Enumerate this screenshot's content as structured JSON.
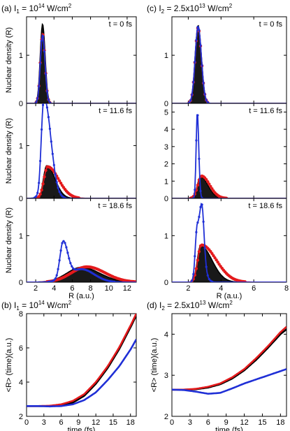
{
  "colors": {
    "black": "#000000",
    "red": "#e41a1c",
    "blue": "#1f2fd6"
  },
  "chart_data": [
    {
      "id": "a0",
      "type": "line",
      "title_prefix": "(a) I",
      "title_sub": "1",
      "title_eq": " = 10",
      "title_sup": "14",
      "title_unit": " W/cm",
      "title_unit_sup": "2",
      "time_label": "t = 0 fs",
      "ylabel": "Nuclear density (R)",
      "xlabel": "",
      "xlim": [
        1,
        13
      ],
      "ylim": [
        0,
        1.8
      ],
      "xticks": [
        "2",
        "4",
        "6",
        "8",
        "10",
        "12"
      ],
      "yticks": [
        "0",
        "1"
      ],
      "series": [
        {
          "color": "black",
          "peak": 2.75,
          "sigmaL": 0.25,
          "sigmaR": 0.28,
          "height": 1.65
        },
        {
          "color": "red",
          "peak": 2.75,
          "sigmaL": 0.24,
          "sigmaR": 0.27,
          "height": 1.45
        },
        {
          "color": "blue",
          "peak": 2.75,
          "sigmaL": 0.24,
          "sigmaR": 0.27,
          "height": 1.42
        }
      ]
    },
    {
      "id": "a1",
      "type": "line",
      "time_label": "t = 11.6 fs",
      "ylabel": "Nuclear density (R)",
      "xlabel": "",
      "xlim": [
        1,
        13
      ],
      "ylim": [
        0,
        1.8
      ],
      "xticks": [
        "2",
        "4",
        "6",
        "8",
        "10",
        "12"
      ],
      "yticks": [
        "0",
        "1"
      ],
      "series": [
        {
          "color": "black",
          "peak": 3.2,
          "sigmaL": 0.35,
          "sigmaR": 0.9,
          "height": 0.62
        },
        {
          "color": "red",
          "peak": 3.3,
          "sigmaL": 0.4,
          "sigmaR": 1.2,
          "height": 0.6
        },
        {
          "color": "blue",
          "peak": 2.85,
          "sigmaL": 0.25,
          "sigmaR": 0.6,
          "height": 1.52,
          "bump": {
            "at": 3.5,
            "h": 0.55,
            "s": 0.6
          }
        }
      ]
    },
    {
      "id": "a2",
      "type": "line",
      "time_label": "t = 18.6 fs",
      "ylabel": "Nuclear density (R)",
      "xlabel": "R (a.u.)",
      "xlim": [
        1,
        13
      ],
      "ylim": [
        0,
        1.8
      ],
      "xticks": [
        "2",
        "4",
        "6",
        "8",
        "10",
        "12"
      ],
      "yticks": [
        "0",
        "1"
      ],
      "series": [
        {
          "color": "black",
          "peak": 7.0,
          "sigmaL": 1.6,
          "sigmaR": 2.0,
          "height": 0.32
        },
        {
          "color": "red",
          "peak": 7.6,
          "sigmaL": 1.7,
          "sigmaR": 2.0,
          "height": 0.33
        },
        {
          "color": "blue",
          "peak": 5.0,
          "sigmaL": 0.35,
          "sigmaR": 0.5,
          "height": 0.78,
          "bump": {
            "at": 7.0,
            "h": 0.28,
            "s": 1.4
          }
        }
      ]
    },
    {
      "id": "c0",
      "type": "line",
      "title_prefix": "(c) I",
      "title_sub": "2",
      "title_eq": " = 2.5x10",
      "title_sup": "13",
      "title_unit": " W/cm",
      "title_unit_sup": "2",
      "time_label": "t = 0 fs",
      "ylabel": "",
      "xlabel": "",
      "xlim": [
        1,
        8
      ],
      "ylim": [
        0,
        1.8
      ],
      "xticks": [
        "2",
        "4",
        "6",
        "8"
      ],
      "yticks": [
        "0",
        "1"
      ],
      "series": [
        {
          "color": "black",
          "peak": 2.6,
          "sigmaL": 0.18,
          "sigmaR": 0.2,
          "height": 1.62
        },
        {
          "color": "red",
          "peak": 2.6,
          "sigmaL": 0.18,
          "sigmaR": 0.2,
          "height": 1.58
        },
        {
          "color": "blue",
          "peak": 2.6,
          "sigmaL": 0.18,
          "sigmaR": 0.2,
          "height": 1.6
        }
      ]
    },
    {
      "id": "c1",
      "type": "line",
      "time_label": "t = 11.6 fs",
      "ylabel": "",
      "xlabel": "",
      "xlim": [
        1,
        8
      ],
      "ylim": [
        0,
        5.5
      ],
      "xticks": [
        "2",
        "4",
        "6",
        "8"
      ],
      "yticks": [
        "0",
        "1",
        "2",
        "3",
        "4",
        "5"
      ],
      "series": [
        {
          "color": "black",
          "peak": 2.75,
          "sigmaL": 0.2,
          "sigmaR": 0.45,
          "height": 1.25
        },
        {
          "color": "red",
          "peak": 2.8,
          "sigmaL": 0.22,
          "sigmaR": 0.5,
          "height": 1.3
        },
        {
          "color": "blue",
          "peak": 2.55,
          "sigmaL": 0.07,
          "sigmaR": 0.09,
          "height": 5.0
        }
      ]
    },
    {
      "id": "c2",
      "type": "line",
      "time_label": "t = 18.6 fs",
      "ylabel": "",
      "xlabel": "R (a.u.)",
      "xlim": [
        1,
        8
      ],
      "ylim": [
        0,
        1.8
      ],
      "xticks": [
        "2",
        "4",
        "6",
        "8"
      ],
      "yticks": [
        "0",
        "1"
      ],
      "series": [
        {
          "color": "black",
          "peak": 2.75,
          "sigmaL": 0.2,
          "sigmaR": 0.7,
          "height": 0.78
        },
        {
          "color": "red",
          "peak": 2.8,
          "sigmaL": 0.22,
          "sigmaR": 0.9,
          "height": 0.8
        },
        {
          "color": "blue",
          "peak": 2.55,
          "sigmaL": 0.12,
          "sigmaR": 0.3,
          "height": 1.22,
          "bump": {
            "at": 2.85,
            "h": 0.9,
            "s": 0.12
          }
        }
      ]
    },
    {
      "id": "b",
      "type": "line",
      "title_prefix": "(b) I",
      "title_sub": "1",
      "title_eq": " = 10",
      "title_sup": "14",
      "title_unit": " W/cm",
      "title_unit_sup": "2",
      "ylabel": "<R> (time)(a.u.)",
      "xlabel": "time (fs)",
      "xlim": [
        0,
        19
      ],
      "ylim": [
        2,
        8
      ],
      "xticks": [
        "0",
        "3",
        "6",
        "9",
        "12",
        "15",
        "18"
      ],
      "yticks": [
        "2",
        "4",
        "6",
        "8"
      ],
      "x": [
        0,
        2,
        4,
        6,
        8,
        10,
        12,
        14,
        16,
        18,
        19
      ],
      "series": [
        {
          "color": "black",
          "values": [
            2.6,
            2.6,
            2.6,
            2.65,
            2.8,
            3.2,
            3.9,
            4.8,
            5.9,
            7.2,
            7.9
          ]
        },
        {
          "color": "red",
          "values": [
            2.6,
            2.6,
            2.62,
            2.7,
            2.9,
            3.3,
            4.0,
            4.9,
            6.0,
            7.3,
            8.0
          ]
        },
        {
          "color": "blue",
          "values": [
            2.6,
            2.6,
            2.58,
            2.6,
            2.7,
            2.95,
            3.4,
            4.1,
            4.9,
            5.9,
            6.5
          ]
        }
      ]
    },
    {
      "id": "d",
      "type": "line",
      "title_prefix": "(d) I",
      "title_sub": "2",
      "title_eq": " = 2.5x10",
      "title_sup": "13",
      "title_unit": " W/cm",
      "title_unit_sup": "2",
      "ylabel": "<R> (time)(a.u.)",
      "xlabel": "time (fs)",
      "xlim": [
        0,
        19
      ],
      "ylim": [
        2,
        4.5
      ],
      "xticks": [
        "0",
        "3",
        "6",
        "9",
        "12",
        "15",
        "18"
      ],
      "yticks": [
        "2",
        "3",
        "4"
      ],
      "x": [
        0,
        2,
        4,
        6,
        8,
        10,
        12,
        14,
        16,
        18,
        19
      ],
      "series": [
        {
          "color": "black",
          "values": [
            2.65,
            2.65,
            2.66,
            2.7,
            2.78,
            2.92,
            3.12,
            3.38,
            3.68,
            4.0,
            4.12
          ]
        },
        {
          "color": "red",
          "values": [
            2.65,
            2.65,
            2.67,
            2.72,
            2.8,
            2.95,
            3.15,
            3.42,
            3.72,
            4.05,
            4.18
          ]
        },
        {
          "color": "blue",
          "values": [
            2.65,
            2.64,
            2.6,
            2.55,
            2.57,
            2.68,
            2.8,
            2.9,
            3.0,
            3.1,
            3.15
          ]
        }
      ]
    }
  ]
}
